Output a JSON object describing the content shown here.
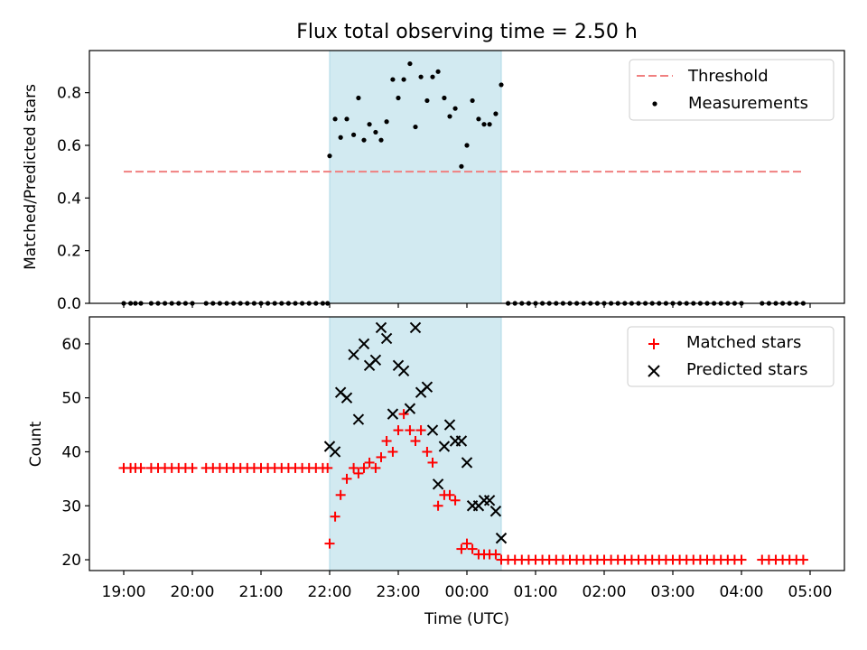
{
  "chart_data": [
    {
      "type": "scatter",
      "title": "Flux total observing time = 2.50 h",
      "xlabel": "",
      "ylabel": "Matched/Predicted stars",
      "xlim": [
        18.5,
        29.5
      ],
      "ylim": [
        0.0,
        0.96
      ],
      "yticks": [
        0.0,
        0.2,
        0.4,
        0.6,
        0.8
      ],
      "ytick_labels": [
        "0.0",
        "0.2",
        "0.4",
        "0.6",
        "0.8"
      ],
      "shaded_span": [
        22.0,
        24.5
      ],
      "threshold": {
        "name": "Threshold",
        "value": 0.5,
        "x_range": [
          19.0,
          28.9
        ],
        "color": "#f08080"
      },
      "legend": {
        "placement": "top-right",
        "entries": [
          "Threshold",
          "Measurements"
        ]
      },
      "series": [
        {
          "name": "Measurements",
          "marker": "dot",
          "color": "#000000",
          "x": [
            19.0,
            19.1,
            19.17,
            19.25,
            19.4,
            19.5,
            19.6,
            19.7,
            19.8,
            19.9,
            20.0,
            20.2,
            20.3,
            20.4,
            20.5,
            20.6,
            20.7,
            20.8,
            20.9,
            21.0,
            21.1,
            21.2,
            21.3,
            21.4,
            21.5,
            21.6,
            21.7,
            21.8,
            21.9,
            21.97,
            22.0,
            22.08,
            22.16,
            22.25,
            22.35,
            22.42,
            22.5,
            22.58,
            22.67,
            22.75,
            22.83,
            22.92,
            23.0,
            23.08,
            23.17,
            23.25,
            23.33,
            23.42,
            23.5,
            23.58,
            23.67,
            23.75,
            23.83,
            23.92,
            24.0,
            24.08,
            24.17,
            24.25,
            24.33,
            24.42,
            24.5,
            24.6,
            24.7,
            24.8,
            24.9,
            25.0,
            25.1,
            25.2,
            25.3,
            25.4,
            25.5,
            25.6,
            25.7,
            25.8,
            25.9,
            26.0,
            26.1,
            26.2,
            26.3,
            26.4,
            26.5,
            26.6,
            26.7,
            26.8,
            26.9,
            27.0,
            27.1,
            27.2,
            27.3,
            27.4,
            27.5,
            27.6,
            27.7,
            27.8,
            27.9,
            28.0,
            28.3,
            28.4,
            28.5,
            28.6,
            28.7,
            28.8,
            28.9
          ],
          "values": [
            0,
            0,
            0,
            0,
            0,
            0,
            0,
            0,
            0,
            0,
            0,
            0,
            0,
            0,
            0,
            0,
            0,
            0,
            0,
            0,
            0,
            0,
            0,
            0,
            0,
            0,
            0,
            0,
            0,
            0,
            0.56,
            0.7,
            0.63,
            0.7,
            0.64,
            0.78,
            0.62,
            0.68,
            0.65,
            0.62,
            0.69,
            0.85,
            0.78,
            0.85,
            0.91,
            0.67,
            0.86,
            0.77,
            0.86,
            0.88,
            0.78,
            0.71,
            0.74,
            0.52,
            0.6,
            0.77,
            0.7,
            0.68,
            0.68,
            0.72,
            0.83,
            0,
            0,
            0,
            0,
            0,
            0,
            0,
            0,
            0,
            0,
            0,
            0,
            0,
            0,
            0,
            0,
            0,
            0,
            0,
            0,
            0,
            0,
            0,
            0,
            0,
            0,
            0,
            0,
            0,
            0,
            0,
            0,
            0,
            0,
            0,
            0,
            0,
            0,
            0,
            0,
            0,
            0
          ]
        }
      ]
    },
    {
      "type": "scatter",
      "title": "",
      "xlabel": "Time (UTC)",
      "ylabel": "Count",
      "xlim": [
        18.5,
        29.5
      ],
      "ylim": [
        18,
        65
      ],
      "yticks": [
        20,
        30,
        40,
        50,
        60
      ],
      "ytick_labels": [
        "20",
        "30",
        "40",
        "50",
        "60"
      ],
      "xticks": [
        19,
        20,
        21,
        22,
        23,
        24,
        25,
        26,
        27,
        28,
        29
      ],
      "xtick_labels": [
        "19:00",
        "20:00",
        "21:00",
        "22:00",
        "23:00",
        "00:00",
        "01:00",
        "02:00",
        "03:00",
        "04:00",
        "05:00"
      ],
      "shaded_span": [
        22.0,
        24.5
      ],
      "legend": {
        "placement": "top-right",
        "entries": [
          "Matched stars",
          "Predicted stars"
        ]
      },
      "series": [
        {
          "name": "Matched stars",
          "marker": "plus",
          "color": "#ff0000",
          "x": [
            19.0,
            19.1,
            19.17,
            19.25,
            19.4,
            19.5,
            19.6,
            19.7,
            19.8,
            19.9,
            20.0,
            20.2,
            20.3,
            20.4,
            20.5,
            20.6,
            20.7,
            20.8,
            20.9,
            21.0,
            21.1,
            21.2,
            21.3,
            21.4,
            21.5,
            21.6,
            21.7,
            21.8,
            21.9,
            21.97,
            22.0,
            22.08,
            22.16,
            22.25,
            22.35,
            22.42,
            22.5,
            22.58,
            22.67,
            22.75,
            22.83,
            22.92,
            23.0,
            23.08,
            23.17,
            23.25,
            23.33,
            23.42,
            23.5,
            23.58,
            23.67,
            23.75,
            23.83,
            23.92,
            24.0,
            24.08,
            24.17,
            24.25,
            24.33,
            24.42,
            24.5,
            24.6,
            24.7,
            24.8,
            24.9,
            25.0,
            25.1,
            25.2,
            25.3,
            25.4,
            25.5,
            25.6,
            25.7,
            25.8,
            25.9,
            26.0,
            26.1,
            26.2,
            26.3,
            26.4,
            26.5,
            26.6,
            26.7,
            26.8,
            26.9,
            27.0,
            27.1,
            27.2,
            27.3,
            27.4,
            27.5,
            27.6,
            27.7,
            27.8,
            27.9,
            28.0,
            28.3,
            28.4,
            28.5,
            28.6,
            28.7,
            28.8,
            28.9
          ],
          "values": [
            37,
            37,
            37,
            37,
            37,
            37,
            37,
            37,
            37,
            37,
            37,
            37,
            37,
            37,
            37,
            37,
            37,
            37,
            37,
            37,
            37,
            37,
            37,
            37,
            37,
            37,
            37,
            37,
            37,
            37,
            23,
            28,
            32,
            35,
            37,
            36,
            37,
            38,
            37,
            39,
            42,
            40,
            44,
            47,
            44,
            42,
            44,
            40,
            38,
            30,
            32,
            32,
            31,
            22,
            23,
            22,
            21,
            21,
            21,
            21,
            20,
            20,
            20,
            20,
            20,
            20,
            20,
            20,
            20,
            20,
            20,
            20,
            20,
            20,
            20,
            20,
            20,
            20,
            20,
            20,
            20,
            20,
            20,
            20,
            20,
            20,
            20,
            20,
            20,
            20,
            20,
            20,
            20,
            20,
            20,
            20,
            20,
            20,
            20,
            20,
            20,
            20,
            20
          ]
        },
        {
          "name": "Predicted stars",
          "marker": "x",
          "color": "#000000",
          "x": [
            22.0,
            22.08,
            22.16,
            22.25,
            22.35,
            22.42,
            22.5,
            22.58,
            22.67,
            22.75,
            22.83,
            22.92,
            23.0,
            23.08,
            23.17,
            23.25,
            23.33,
            23.42,
            23.5,
            23.58,
            23.67,
            23.75,
            23.83,
            23.92,
            24.0,
            24.08,
            24.17,
            24.25,
            24.33,
            24.42,
            24.5
          ],
          "values": [
            41,
            40,
            51,
            50,
            58,
            46,
            60,
            56,
            57,
            63,
            61,
            47,
            56,
            55,
            48,
            63,
            51,
            52,
            44,
            34,
            41,
            45,
            42,
            42,
            38,
            30,
            30,
            31,
            31,
            29,
            24
          ]
        }
      ]
    }
  ]
}
